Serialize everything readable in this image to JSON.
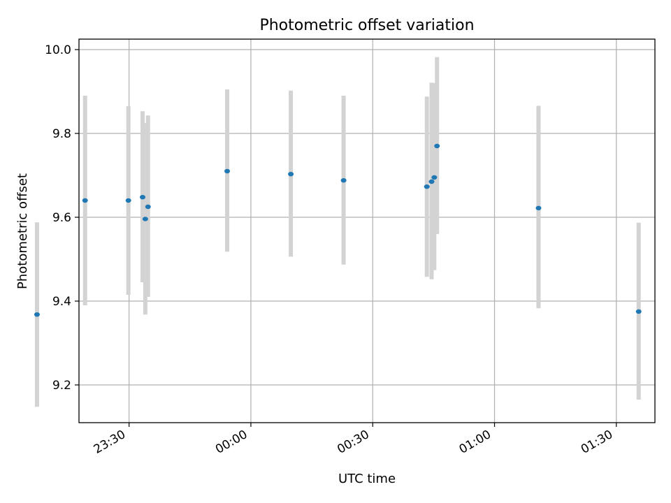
{
  "chart_data": {
    "type": "scatter",
    "title": "Photometric offset variation",
    "xlabel": "UTC time",
    "ylabel": "Photometric offset",
    "x_ticks": [
      "23:30",
      "00:00",
      "00:30",
      "01:00",
      "01:30"
    ],
    "y_ticks": [
      "9.2",
      "9.4",
      "9.6",
      "9.8",
      "10.0"
    ],
    "xlim": [
      "23:17:40",
      "01:39:30"
    ],
    "ylim": [
      9.11,
      10.025
    ],
    "grid": true,
    "colors": {
      "points": "#1f77b4",
      "errorbars": "#d3d3d3",
      "grid": "#b0b0b0"
    },
    "series": [
      {
        "points": [
          {
            "x": "23:07:20",
            "y": 9.368,
            "ylow": 9.148,
            "yhigh": 9.588
          },
          {
            "x": "23:19:10",
            "y": 9.64,
            "ylow": 9.39,
            "yhigh": 9.89
          },
          {
            "x": "23:29:50",
            "y": 9.64,
            "ylow": 9.415,
            "yhigh": 9.865
          },
          {
            "x": "23:33:20",
            "y": 9.648,
            "ylow": 9.445,
            "yhigh": 9.853
          },
          {
            "x": "23:34:00",
            "y": 9.596,
            "ylow": 9.368,
            "yhigh": 9.825
          },
          {
            "x": "23:34:40",
            "y": 9.625,
            "ylow": 9.41,
            "yhigh": 9.843
          },
          {
            "x": "23:54:10",
            "y": 9.71,
            "ylow": 9.518,
            "yhigh": 9.905
          },
          {
            "x": "00:09:50",
            "y": 9.703,
            "ylow": 9.506,
            "yhigh": 9.902
          },
          {
            "x": "00:22:50",
            "y": 9.688,
            "ylow": 9.487,
            "yhigh": 9.89
          },
          {
            "x": "00:43:20",
            "y": 9.673,
            "ylow": 9.458,
            "yhigh": 9.888
          },
          {
            "x": "00:44:30",
            "y": 9.685,
            "ylow": 9.452,
            "yhigh": 9.921
          },
          {
            "x": "00:45:10",
            "y": 9.695,
            "ylow": 9.474,
            "yhigh": 9.92
          },
          {
            "x": "00:45:50",
            "y": 9.77,
            "ylow": 9.56,
            "yhigh": 9.982
          },
          {
            "x": "01:10:50",
            "y": 9.622,
            "ylow": 9.383,
            "yhigh": 9.866
          },
          {
            "x": "01:35:30",
            "y": 9.375,
            "ylow": 9.165,
            "yhigh": 9.587
          }
        ]
      }
    ]
  }
}
